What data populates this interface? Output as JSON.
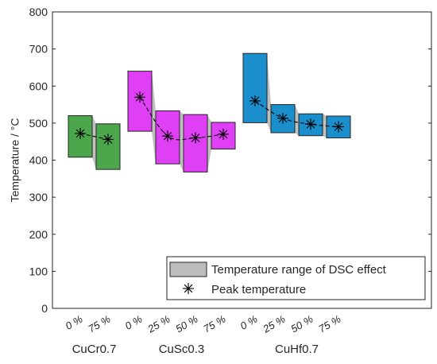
{
  "chart_data": {
    "type": "box-range",
    "ylabel": "Temperature / °C",
    "ylim": [
      0,
      800
    ],
    "yticks": [
      0,
      100,
      200,
      300,
      400,
      500,
      600,
      700,
      800
    ],
    "grid": false,
    "legend": {
      "placement": "bottom-right",
      "range_label": "Temperature range of DSC effect",
      "peak_label": "Peak temperature"
    },
    "colors": {
      "CuCr0.7": "#4ca64c",
      "CuSc0.3": "#e040f5",
      "CuHf0.7": "#1a8fcc",
      "connector": "#c0c0c0",
      "legend_swatch": "#bcbcbc"
    },
    "groups": [
      {
        "name": "CuCr0.7",
        "items": [
          {
            "label": "0 %",
            "low": 408,
            "high": 520,
            "peak": 472
          },
          {
            "label": "75 %",
            "low": 375,
            "high": 498,
            "peak": 456
          }
        ]
      },
      {
        "name": "CuSc0.3",
        "items": [
          {
            "label": "0 %",
            "low": 478,
            "high": 640,
            "peak": 570
          },
          {
            "label": "25 %",
            "low": 390,
            "high": 533,
            "peak": 465
          },
          {
            "label": "50 %",
            "low": 368,
            "high": 523,
            "peak": 460
          },
          {
            "label": "75 %",
            "low": 430,
            "high": 502,
            "peak": 470
          }
        ]
      },
      {
        "name": "CuHf0.7",
        "items": [
          {
            "label": "0 %",
            "low": 501,
            "high": 688,
            "peak": 560
          },
          {
            "label": "25 %",
            "low": 474,
            "high": 550,
            "peak": 513
          },
          {
            "label": "50 %",
            "low": 466,
            "high": 525,
            "peak": 497
          },
          {
            "label": "75 %",
            "low": 460,
            "high": 519,
            "peak": 490
          }
        ]
      }
    ]
  }
}
